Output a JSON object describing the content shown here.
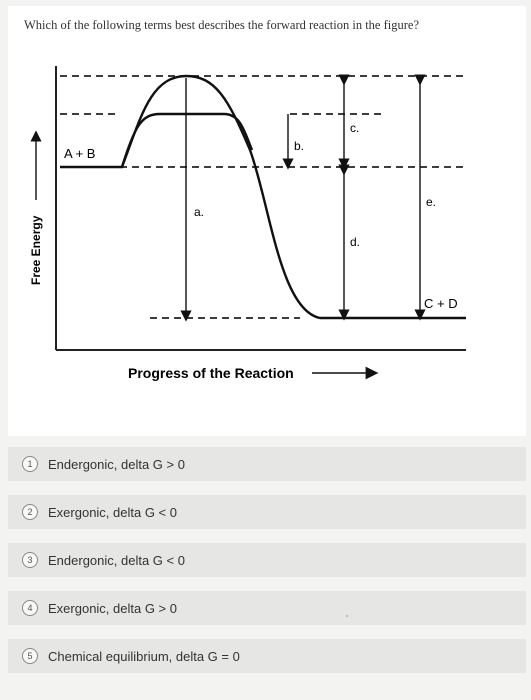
{
  "question": "Which of the following terms best describes the forward reaction in the figure?",
  "figure": {
    "y_axis_label": "Free Energy",
    "x_axis_label": "Progress of the Reaction",
    "reactants_label": "A + B",
    "products_label": "C + D",
    "markers": {
      "a": "a.",
      "b": "b.",
      "c": "c.",
      "d": "d.",
      "e": "e."
    }
  },
  "options": [
    {
      "number": "1",
      "text": "Endergonic, delta G > 0"
    },
    {
      "number": "2",
      "text": "Exergonic, delta G < 0"
    },
    {
      "number": "3",
      "text": "Endergonic, delta G < 0"
    },
    {
      "number": "4",
      "text": "Exergonic, delta G > 0"
    },
    {
      "number": "5",
      "text": "Chemical equilibrium, delta G = 0"
    }
  ]
}
